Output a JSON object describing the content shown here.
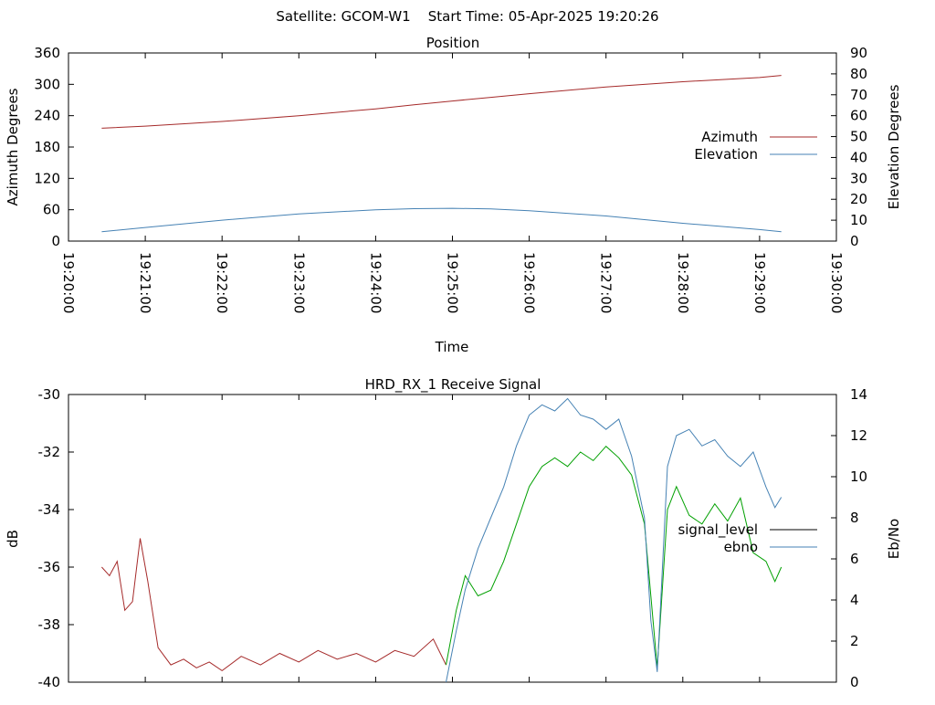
{
  "header": {
    "title": "Satellite: GCOM-W1    Start Time: 05-Apr-2025 19:20:26"
  },
  "chart_data": [
    {
      "type": "line",
      "title": "Position",
      "xlabel": "Time",
      "ylabel": "Azimuth Degrees",
      "y2label": "Elevation Degrees",
      "xlim": [
        "19:20:00",
        "19:30:00"
      ],
      "xticks": [
        "19:20:00",
        "19:21:00",
        "19:22:00",
        "19:23:00",
        "19:24:00",
        "19:25:00",
        "19:26:00",
        "19:27:00",
        "19:28:00",
        "19:29:00",
        "19:30:00"
      ],
      "ylim": [
        0,
        360
      ],
      "yticks": [
        0,
        60,
        120,
        180,
        240,
        300,
        360
      ],
      "y2lim": [
        0,
        90
      ],
      "y2ticks": [
        0,
        10,
        20,
        30,
        40,
        50,
        60,
        70,
        80,
        90
      ],
      "legend_position": "right",
      "grid": false,
      "series": [
        {
          "name": "Azimuth",
          "axis": "y",
          "color": "#a52a2a",
          "x": [
            "19:20:26",
            "19:21:00",
            "19:22:00",
            "19:23:00",
            "19:24:00",
            "19:24:30",
            "19:25:00",
            "19:25:30",
            "19:26:00",
            "19:27:00",
            "19:28:00",
            "19:29:00",
            "19:29:17"
          ],
          "values": [
            216,
            220,
            229,
            240,
            253,
            261,
            268,
            275,
            282,
            295,
            305,
            313,
            317
          ]
        },
        {
          "name": "Elevation",
          "axis": "y2",
          "color": "#4682b4",
          "x": [
            "19:20:26",
            "19:21:00",
            "19:22:00",
            "19:23:00",
            "19:24:00",
            "19:24:30",
            "19:25:00",
            "19:25:30",
            "19:26:00",
            "19:27:00",
            "19:28:00",
            "19:29:00",
            "19:29:17"
          ],
          "values": [
            4.5,
            6.5,
            10,
            13,
            15,
            15.5,
            15.7,
            15.4,
            14.5,
            12,
            8.5,
            5.5,
            4.5
          ]
        }
      ]
    },
    {
      "type": "line",
      "title": "HRD_RX_1 Receive Signal",
      "ylabel": "dB",
      "y2label": "Eb/No",
      "xlim": [
        "19:20:00",
        "19:30:00"
      ],
      "ylim": [
        -40,
        -30
      ],
      "yticks": [
        -40,
        -38,
        -36,
        -34,
        -32,
        -30
      ],
      "y2lim": [
        0,
        14
      ],
      "y2ticks": [
        0,
        2,
        4,
        6,
        8,
        10,
        12,
        14
      ],
      "legend_position": "right",
      "grid": false,
      "series": [
        {
          "name": "signal_level",
          "axis": "y",
          "color": "#a52a2a",
          "color_high": "#00a000",
          "legend_color": "#000000",
          "x": [
            "19:20:26",
            "19:20:32",
            "19:20:38",
            "19:20:44",
            "19:20:50",
            "19:20:56",
            "19:21:02",
            "19:21:10",
            "19:21:20",
            "19:21:30",
            "19:21:40",
            "19:21:50",
            "19:22:00",
            "19:22:15",
            "19:22:30",
            "19:22:45",
            "19:23:00",
            "19:23:15",
            "19:23:30",
            "19:23:45",
            "19:24:00",
            "19:24:15",
            "19:24:30",
            "19:24:45",
            "19:24:55",
            "19:25:03",
            "19:25:10",
            "19:25:20",
            "19:25:30",
            "19:25:40",
            "19:25:50",
            "19:26:00",
            "19:26:10",
            "19:26:20",
            "19:26:30",
            "19:26:40",
            "19:26:50",
            "19:27:00",
            "19:27:10",
            "19:27:20",
            "19:27:30",
            "19:27:35",
            "19:27:40",
            "19:27:48",
            "19:27:55",
            "19:28:05",
            "19:28:15",
            "19:28:25",
            "19:28:35",
            "19:28:45",
            "19:28:55",
            "19:29:05",
            "19:29:12",
            "19:29:17"
          ],
          "values": [
            -36.0,
            -36.3,
            -35.8,
            -37.5,
            -37.2,
            -35.0,
            -36.5,
            -38.8,
            -39.4,
            -39.2,
            -39.5,
            -39.3,
            -39.6,
            -39.1,
            -39.4,
            -39.0,
            -39.3,
            -38.9,
            -39.2,
            -39.0,
            -39.3,
            -38.9,
            -39.1,
            -38.5,
            -39.4,
            -37.5,
            -36.3,
            -37.0,
            -36.8,
            -35.8,
            -34.5,
            -33.2,
            -32.5,
            -32.2,
            -32.5,
            -32.0,
            -32.3,
            -31.8,
            -32.2,
            -32.8,
            -34.5,
            -37.0,
            -39.5,
            -34.0,
            -33.2,
            -34.2,
            -34.5,
            -33.8,
            -34.4,
            -33.6,
            -35.5,
            -35.8,
            -36.5,
            -36.0
          ]
        },
        {
          "name": "ebno",
          "axis": "y2",
          "color": "#4682b4",
          "x": [
            "19:24:55",
            "19:25:03",
            "19:25:10",
            "19:25:20",
            "19:25:30",
            "19:25:40",
            "19:25:50",
            "19:26:00",
            "19:26:10",
            "19:26:20",
            "19:26:30",
            "19:26:40",
            "19:26:50",
            "19:27:00",
            "19:27:10",
            "19:27:20",
            "19:27:30",
            "19:27:35",
            "19:27:40",
            "19:27:48",
            "19:27:55",
            "19:28:05",
            "19:28:15",
            "19:28:25",
            "19:28:35",
            "19:28:45",
            "19:28:55",
            "19:29:05",
            "19:29:12",
            "19:29:17"
          ],
          "values": [
            0.0,
            2.5,
            4.5,
            6.5,
            8.0,
            9.5,
            11.5,
            13.0,
            13.5,
            13.2,
            13.8,
            13.0,
            12.8,
            12.3,
            12.8,
            11.0,
            8.0,
            3.0,
            0.5,
            10.5,
            12.0,
            12.3,
            11.5,
            11.8,
            11.0,
            10.5,
            11.2,
            9.5,
            8.5,
            9.0
          ]
        }
      ]
    }
  ]
}
